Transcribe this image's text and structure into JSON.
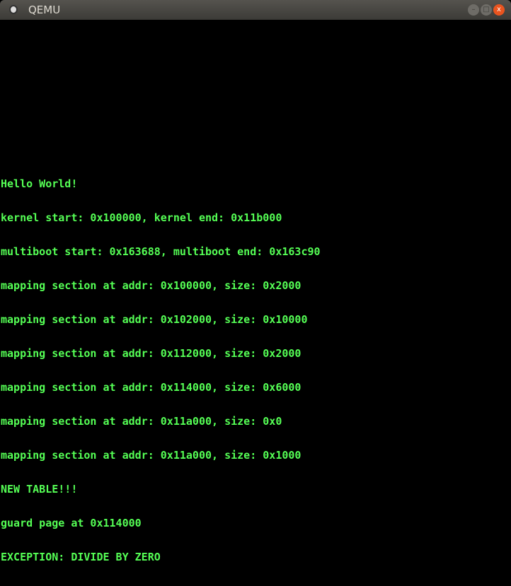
{
  "window": {
    "title": "QEMU",
    "minimize": "–",
    "maximize": "□",
    "close": "x"
  },
  "console": {
    "color": "#55ff55",
    "lines": [
      "Hello World!",
      "kernel start: 0x100000, kernel end: 0x11b000",
      "multiboot start: 0x163688, multiboot end: 0x163c90",
      "mapping section at addr: 0x100000, size: 0x2000",
      "mapping section at addr: 0x102000, size: 0x10000",
      "mapping section at addr: 0x112000, size: 0x2000",
      "mapping section at addr: 0x114000, size: 0x6000",
      "mapping section at addr: 0x11a000, size: 0x0",
      "mapping section at addr: 0x11a000, size: 0x1000",
      "NEW TABLE!!!",
      "guard page at 0x114000",
      "EXCEPTION: DIVIDE BY ZERO"
    ]
  }
}
